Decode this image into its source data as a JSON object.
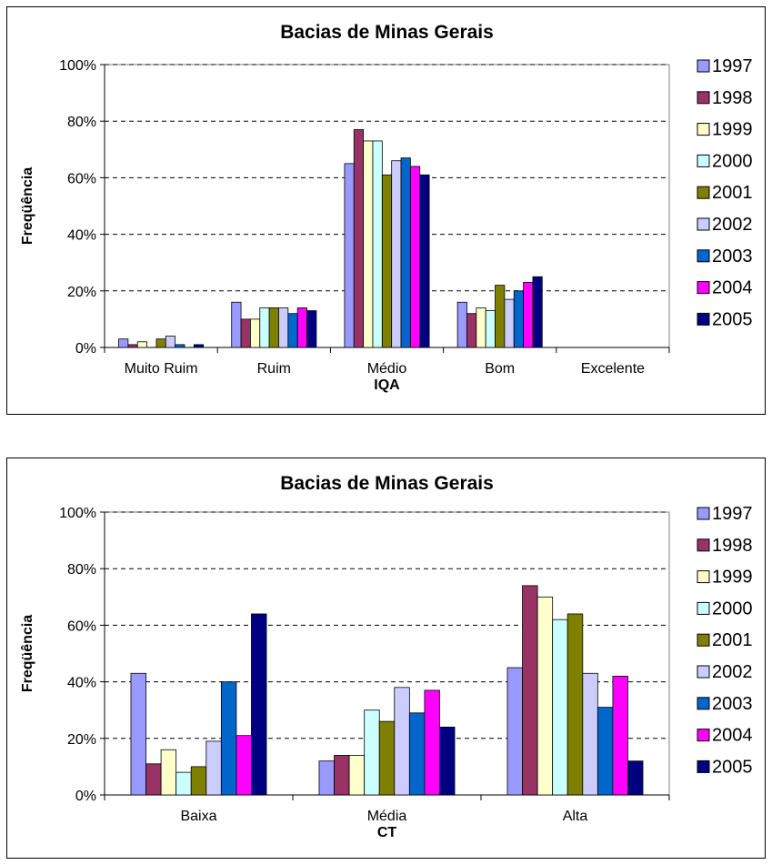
{
  "colors": {
    "series": [
      "#9999FF",
      "#993366",
      "#FFFFCC",
      "#CCFFFF",
      "#808000",
      "#CCCCFF",
      "#0066CC",
      "#FF00FF",
      "#000080"
    ],
    "plot_background": "#ffffff",
    "gridline": "#000000"
  },
  "chart_data": [
    {
      "type": "bar",
      "title": "Bacias de Minas Gerais",
      "xlabel": "IQA",
      "ylabel": "Freqüência",
      "ylim": [
        0,
        100
      ],
      "yticks": [
        "0%",
        "20%",
        "40%",
        "60%",
        "80%",
        "100%"
      ],
      "grid": "horizontal dashed",
      "legend_position": "right",
      "categories": [
        "Muito Ruim",
        "Ruim",
        "Médio",
        "Bom",
        "Excelente"
      ],
      "series": [
        {
          "name": "1997",
          "values": [
            3,
            16,
            65,
            16,
            0
          ]
        },
        {
          "name": "1998",
          "values": [
            1,
            10,
            77,
            12,
            0
          ]
        },
        {
          "name": "1999",
          "values": [
            2,
            10,
            73,
            14,
            0
          ]
        },
        {
          "name": "2000",
          "values": [
            0,
            14,
            73,
            13,
            0
          ]
        },
        {
          "name": "2001",
          "values": [
            3,
            14,
            61,
            22,
            0
          ]
        },
        {
          "name": "2002",
          "values": [
            4,
            14,
            66,
            17,
            0
          ]
        },
        {
          "name": "2003",
          "values": [
            1,
            12,
            67,
            20,
            0
          ]
        },
        {
          "name": "2004",
          "values": [
            0,
            14,
            64,
            23,
            0
          ]
        },
        {
          "name": "2005",
          "values": [
            1,
            13,
            61,
            25,
            0
          ]
        }
      ]
    },
    {
      "type": "bar",
      "title": "Bacias de Minas Gerais",
      "xlabel": "CT",
      "ylabel": "Freqüência",
      "ylim": [
        0,
        100
      ],
      "yticks": [
        "0%",
        "20%",
        "40%",
        "60%",
        "80%",
        "100%"
      ],
      "grid": "horizontal dashed",
      "legend_position": "right",
      "categories": [
        "Baixa",
        "Média",
        "Alta"
      ],
      "series": [
        {
          "name": "1997",
          "values": [
            43,
            12,
            45
          ]
        },
        {
          "name": "1998",
          "values": [
            11,
            14,
            74
          ]
        },
        {
          "name": "1999",
          "values": [
            16,
            14,
            70
          ]
        },
        {
          "name": "2000",
          "values": [
            8,
            30,
            62
          ]
        },
        {
          "name": "2001",
          "values": [
            10,
            26,
            64
          ]
        },
        {
          "name": "2002",
          "values": [
            19,
            38,
            43
          ]
        },
        {
          "name": "2003",
          "values": [
            40,
            29,
            31
          ]
        },
        {
          "name": "2004",
          "values": [
            21,
            37,
            42
          ]
        },
        {
          "name": "2005",
          "values": [
            64,
            24,
            12
          ]
        }
      ]
    }
  ]
}
